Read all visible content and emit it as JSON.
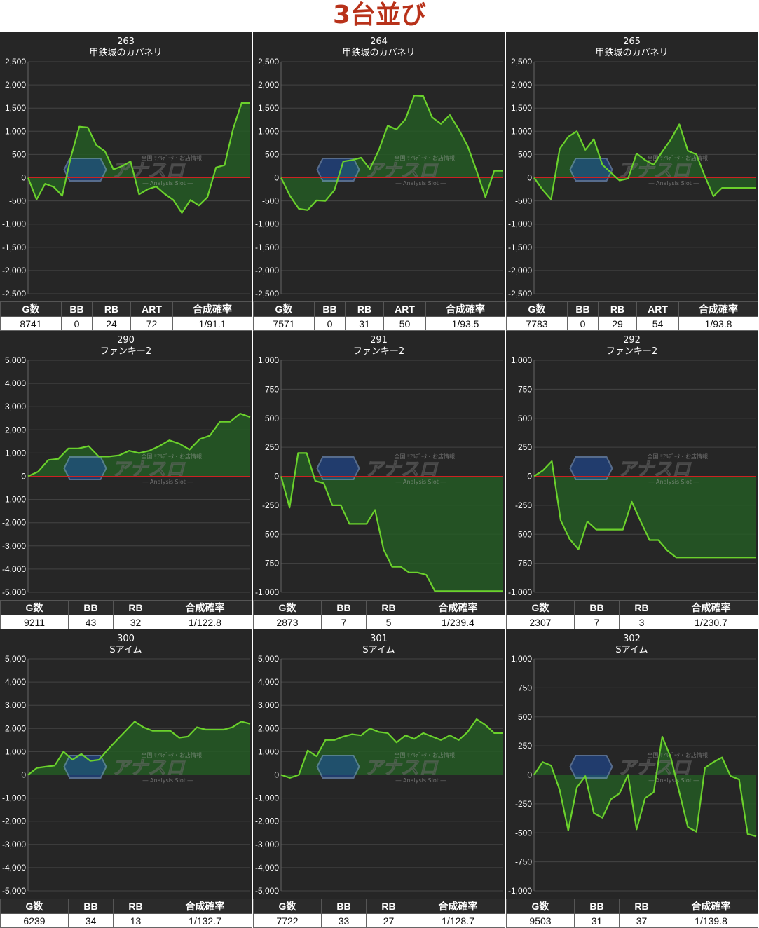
{
  "page_title": "3台並び",
  "watermark": {
    "top_text": "全国 ﾘｱﾙﾃﾞｰﾀ・お店情報",
    "main_text": "アナスロ",
    "sub_text": "― Analysis Slot ―"
  },
  "colors": {
    "panel_bg": "#262626",
    "grid": "#444444",
    "line": "#6bd12c",
    "fill": "#245a24",
    "zero_line": "#cc2222",
    "header_bg": "#2b2b2b"
  },
  "chart_data": [
    {
      "type": "area",
      "machine_number": "263",
      "machine_name": "甲鉄城のカバネリ",
      "ylim": [
        -2500,
        2500
      ],
      "yticks": [
        2500,
        2000,
        1500,
        1000,
        500,
        0,
        -500,
        -1000,
        -1500,
        -2000,
        -2500
      ],
      "ytick_labels": [
        "2,500",
        "2,000",
        "1,500",
        "1,000",
        "500",
        "0",
        "-500",
        "-1,000",
        "-1,500",
        "-2,000",
        "-2,500"
      ],
      "values": [
        0,
        -470,
        -130,
        -200,
        -390,
        440,
        1100,
        1080,
        700,
        570,
        180,
        250,
        350,
        -360,
        -250,
        -190,
        -350,
        -480,
        -760,
        -480,
        -600,
        -420,
        220,
        270,
        1050,
        1610,
        1610
      ],
      "stats": {
        "columns": [
          "G数",
          "BB",
          "RB",
          "ART",
          "合成確率"
        ],
        "values": [
          "8741",
          "0",
          "24",
          "72",
          "1/91.1"
        ]
      }
    },
    {
      "type": "area",
      "machine_number": "264",
      "machine_name": "甲鉄城のカバネリ",
      "ylim": [
        -2500,
        2500
      ],
      "yticks": [
        2500,
        2000,
        1500,
        1000,
        500,
        0,
        -500,
        -1000,
        -1500,
        -2000,
        -2500
      ],
      "ytick_labels": [
        "2,500",
        "2,000",
        "1,500",
        "1,000",
        "500",
        "0",
        "-500",
        "-1,000",
        "-1,500",
        "-2,000",
        "-2,500"
      ],
      "values": [
        0,
        -390,
        -670,
        -700,
        -490,
        -500,
        -270,
        350,
        380,
        430,
        190,
        590,
        1120,
        1040,
        1260,
        1770,
        1760,
        1300,
        1160,
        1350,
        1040,
        680,
        150,
        -420,
        150,
        150
      ],
      "stats": {
        "columns": [
          "G数",
          "BB",
          "RB",
          "ART",
          "合成確率"
        ],
        "values": [
          "7571",
          "0",
          "31",
          "50",
          "1/93.5"
        ]
      }
    },
    {
      "type": "area",
      "machine_number": "265",
      "machine_name": "甲鉄城のカバネリ",
      "ylim": [
        -2500,
        2500
      ],
      "yticks": [
        2500,
        2000,
        1500,
        1000,
        500,
        0,
        -500,
        -1000,
        -1500,
        -2000,
        -2500
      ],
      "ytick_labels": [
        "2,500",
        "2,000",
        "1,500",
        "1,000",
        "500",
        "0",
        "-500",
        "-1,000",
        "-1,500",
        "-2,000",
        "-2,500"
      ],
      "values": [
        0,
        -260,
        -470,
        620,
        880,
        1000,
        600,
        830,
        280,
        110,
        -60,
        -20,
        520,
        380,
        280,
        560,
        820,
        1150,
        580,
        500,
        30,
        -400,
        -220,
        -220,
        -220,
        -220,
        -220
      ],
      "stats": {
        "columns": [
          "G数",
          "BB",
          "RB",
          "ART",
          "合成確率"
        ],
        "values": [
          "7783",
          "0",
          "29",
          "54",
          "1/93.8"
        ]
      }
    },
    {
      "type": "area",
      "machine_number": "290",
      "machine_name": "ファンキー2",
      "ylim": [
        -5000,
        5000
      ],
      "yticks": [
        5000,
        4000,
        3000,
        2000,
        1000,
        0,
        -1000,
        -2000,
        -3000,
        -4000,
        -5000
      ],
      "ytick_labels": [
        "5,000",
        "4,000",
        "3,000",
        "2,000",
        "1,000",
        "0",
        "-1,000",
        "-2,000",
        "-3,000",
        "-4,000",
        "-5,000"
      ],
      "values": [
        0,
        200,
        700,
        750,
        1200,
        1200,
        1300,
        850,
        850,
        900,
        1100,
        1000,
        1100,
        1300,
        1550,
        1400,
        1150,
        1600,
        1750,
        2350,
        2350,
        2700,
        2550
      ],
      "stats": {
        "columns": [
          "G数",
          "BB",
          "RB",
          "合成確率"
        ],
        "values": [
          "9211",
          "43",
          "32",
          "1/122.8"
        ]
      }
    },
    {
      "type": "area",
      "machine_number": "291",
      "machine_name": "ファンキー2",
      "ylim": [
        -1000,
        1000
      ],
      "yticks": [
        1000,
        750,
        500,
        250,
        0,
        -250,
        -500,
        -750,
        -1000
      ],
      "ytick_labels": [
        "1,000",
        "750",
        "500",
        "250",
        "0",
        "-250",
        "-500",
        "-750",
        "-1,000"
      ],
      "values": [
        0,
        -270,
        200,
        200,
        -40,
        -60,
        -250,
        -250,
        -410,
        -410,
        -410,
        -290,
        -630,
        -780,
        -780,
        -830,
        -830,
        -850,
        -990,
        -990,
        -990,
        -990,
        -990,
        -990,
        -990,
        -990,
        -990
      ],
      "stats": {
        "columns": [
          "G数",
          "BB",
          "RB",
          "合成確率"
        ],
        "values": [
          "2873",
          "7",
          "5",
          "1/239.4"
        ]
      }
    },
    {
      "type": "area",
      "machine_number": "292",
      "machine_name": "ファンキー2",
      "ylim": [
        -1000,
        1000
      ],
      "yticks": [
        1000,
        750,
        500,
        250,
        0,
        -250,
        -500,
        -750,
        -1000
      ],
      "ytick_labels": [
        "1,000",
        "750",
        "500",
        "250",
        "0",
        "-250",
        "-500",
        "-750",
        "-1,000"
      ],
      "values": [
        0,
        50,
        130,
        -380,
        -540,
        -630,
        -390,
        -460,
        -460,
        -460,
        -460,
        -220,
        -390,
        -550,
        -550,
        -640,
        -700,
        -700,
        -700,
        -700,
        -700,
        -700,
        -700,
        -700,
        -700,
        -700
      ],
      "stats": {
        "columns": [
          "G数",
          "BB",
          "RB",
          "合成確率"
        ],
        "values": [
          "2307",
          "7",
          "3",
          "1/230.7"
        ]
      }
    },
    {
      "type": "area",
      "machine_number": "300",
      "machine_name": "Sアイム",
      "ylim": [
        -5000,
        5000
      ],
      "yticks": [
        5000,
        4000,
        3000,
        2000,
        1000,
        0,
        -1000,
        -2000,
        -3000,
        -4000,
        -5000
      ],
      "ytick_labels": [
        "5,000",
        "4,000",
        "3,000",
        "2,000",
        "1,000",
        "0",
        "-1,000",
        "-2,000",
        "-3,000",
        "-4,000",
        "-5,000"
      ],
      "values": [
        0,
        300,
        350,
        400,
        1000,
        650,
        900,
        600,
        650,
        1100,
        1500,
        1900,
        2300,
        2050,
        1900,
        1900,
        1900,
        1600,
        1650,
        2050,
        1950,
        1950,
        1950,
        2050,
        2300,
        2200
      ],
      "stats": {
        "columns": [
          "G数",
          "BB",
          "RB",
          "合成確率"
        ],
        "values": [
          "6239",
          "34",
          "13",
          "1/132.7"
        ]
      }
    },
    {
      "type": "area",
      "machine_number": "301",
      "machine_name": "Sアイム",
      "ylim": [
        -5000,
        5000
      ],
      "yticks": [
        5000,
        4000,
        3000,
        2000,
        1000,
        0,
        -1000,
        -2000,
        -3000,
        -4000,
        -5000
      ],
      "ytick_labels": [
        "5,000",
        "4,000",
        "3,000",
        "2,000",
        "1,000",
        "0",
        "-1,000",
        "-2,000",
        "-3,000",
        "-4,000",
        "-5,000"
      ],
      "values": [
        0,
        -130,
        0,
        1050,
        800,
        1500,
        1500,
        1650,
        1750,
        1700,
        2000,
        1850,
        1800,
        1400,
        1700,
        1550,
        1800,
        1650,
        1500,
        1700,
        1500,
        1850,
        2400,
        2150,
        1800,
        1800
      ],
      "stats": {
        "columns": [
          "G数",
          "BB",
          "RB",
          "合成確率"
        ],
        "values": [
          "7722",
          "33",
          "27",
          "1/128.7"
        ]
      }
    },
    {
      "type": "area",
      "machine_number": "302",
      "machine_name": "Sアイム",
      "ylim": [
        -1000,
        1000
      ],
      "yticks": [
        1000,
        750,
        500,
        250,
        0,
        -250,
        -500,
        -750,
        -1000
      ],
      "ytick_labels": [
        "1,000",
        "750",
        "500",
        "250",
        "0",
        "-250",
        "-500",
        "-750",
        "-1,000"
      ],
      "values": [
        0,
        110,
        80,
        -130,
        -480,
        -110,
        -10,
        -330,
        -370,
        -210,
        -160,
        0,
        -470,
        -200,
        -150,
        330,
        150,
        -150,
        -450,
        -490,
        60,
        110,
        150,
        -10,
        -40,
        -510,
        -530
      ],
      "stats": {
        "columns": [
          "G数",
          "BB",
          "RB",
          "合成確率"
        ],
        "values": [
          "9503",
          "31",
          "37",
          "1/139.8"
        ]
      }
    }
  ]
}
